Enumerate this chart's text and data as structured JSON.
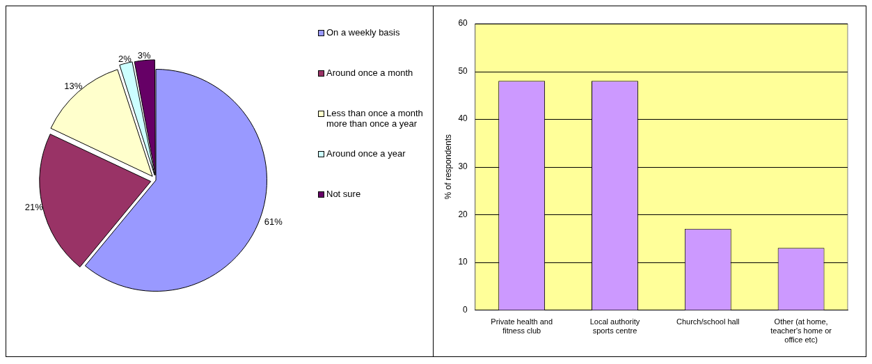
{
  "chart_data": [
    {
      "type": "pie",
      "categories": [
        "On a weekly basis",
        "Around once a month",
        "Less than once a month more than once a year",
        "Around once a year",
        "Not sure"
      ],
      "values": [
        61,
        21,
        13,
        2,
        3
      ],
      "colors": [
        "#9999ff",
        "#993366",
        "#ffffcc",
        "#ccffff",
        "#660066"
      ],
      "value_labels": [
        "61%",
        "21%",
        "13%",
        "2%",
        "3%"
      ],
      "legend": "right"
    },
    {
      "type": "bar",
      "categories": [
        "Private health and fitness club",
        "Local authority sports centre",
        "Church/school hall",
        "Other (at home, teacher's home or office etc)"
      ],
      "values": [
        48,
        48,
        17,
        13
      ],
      "color": "#cc99ff",
      "ylabel": "% of respondents",
      "ylim": [
        0,
        60
      ],
      "yticks": [
        0,
        10,
        20,
        30,
        40,
        50,
        60
      ],
      "grid": "y",
      "legend": false
    }
  ]
}
